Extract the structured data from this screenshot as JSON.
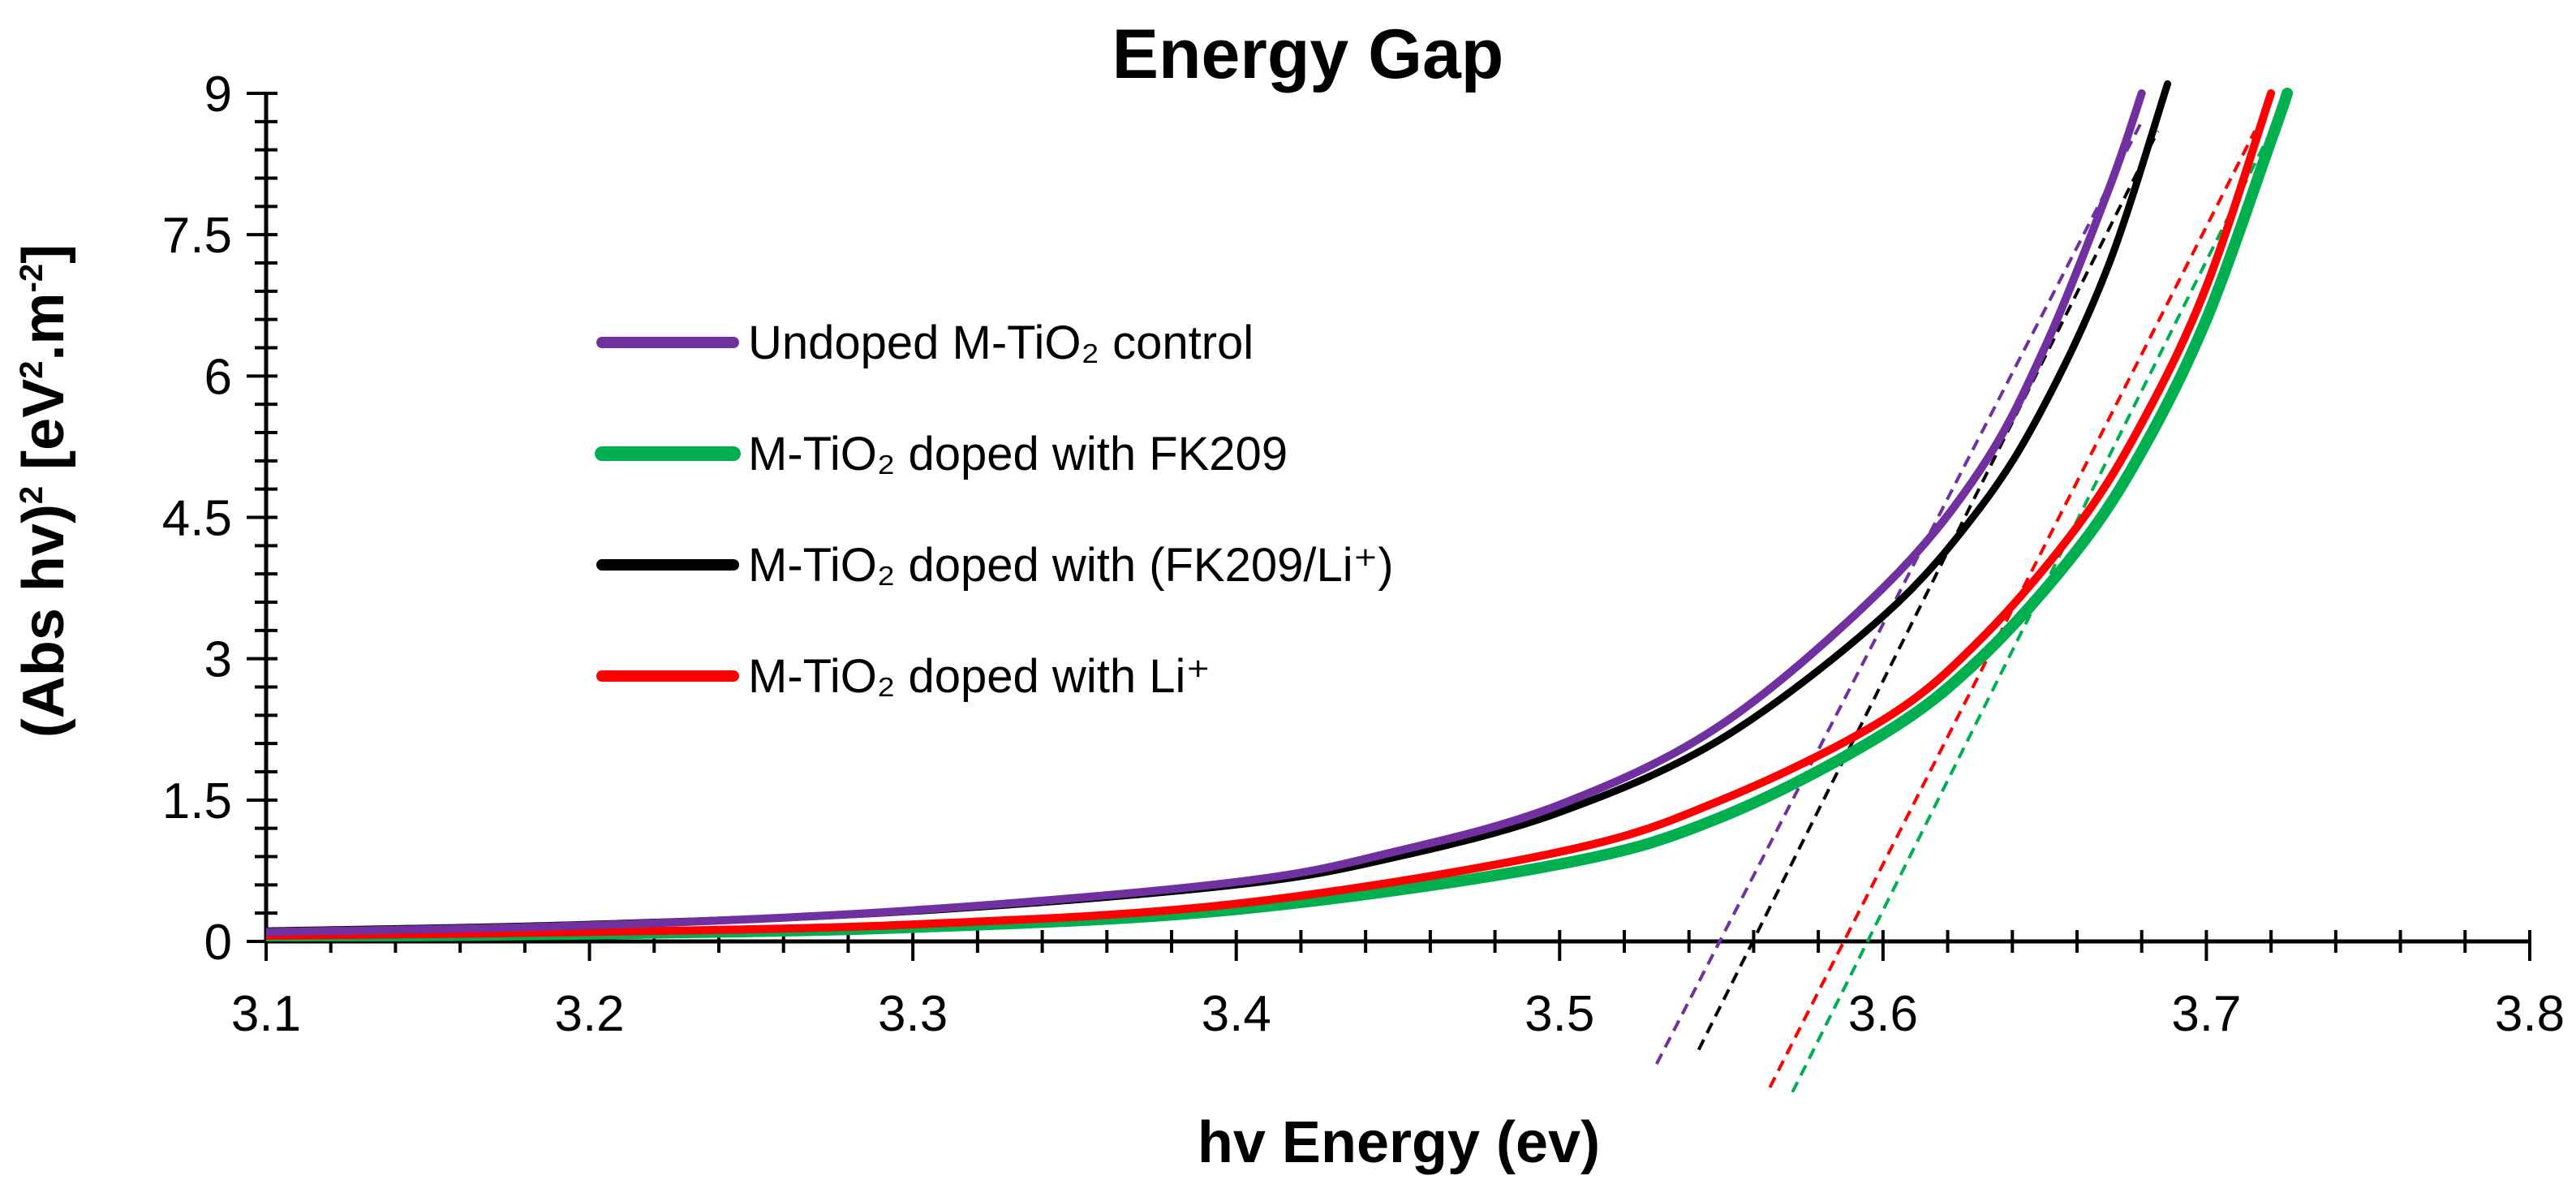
{
  "chart_data": {
    "type": "line",
    "title": "Energy Gap",
    "xlabel": "hv Energy (ev)",
    "ylabel_main": "(Abs hv)",
    "ylabel_sup1": "2",
    "ylabel_unit_open": " [eV",
    "ylabel_sup2": "2",
    "ylabel_unit_mid": ".m",
    "ylabel_sup3": "-2",
    "ylabel_unit_close": "]",
    "xlim": [
      3.1,
      3.8
    ],
    "ylim": [
      0,
      9
    ],
    "x_ticks": [
      "3.1",
      "3.2",
      "3.3",
      "3.4",
      "3.5",
      "3.6",
      "3.7",
      "3.8"
    ],
    "y_ticks": [
      "0",
      "1.5",
      "3",
      "4.5",
      "6",
      "7.5",
      "9"
    ],
    "grid": false,
    "legend_position": "upper-left inside",
    "series": [
      {
        "name": "Undoped M-TiO₂ control",
        "color": "#7030A0",
        "x": [
          3.1,
          3.2,
          3.3,
          3.4,
          3.45,
          3.5,
          3.55,
          3.6,
          3.63,
          3.65,
          3.67,
          3.68
        ],
        "y": [
          0.1,
          0.17,
          0.33,
          0.63,
          0.96,
          1.45,
          2.3,
          3.75,
          5.0,
          6.3,
          8.0,
          9.0
        ],
        "fit_x": [
          3.53,
          3.68
        ],
        "fit_y": [
          -1.3,
          8.7
        ]
      },
      {
        "name": "M-TiO₂ doped with FK209",
        "color": "#00B050",
        "x": [
          3.1,
          3.2,
          3.3,
          3.4,
          3.5,
          3.55,
          3.6,
          3.63,
          3.66,
          3.68,
          3.7,
          3.72,
          3.725
        ],
        "y": [
          0.05,
          0.08,
          0.15,
          0.34,
          0.82,
          1.32,
          2.2,
          3.0,
          4.15,
          5.2,
          6.6,
          8.5,
          9.0
        ],
        "fit_x": [
          3.572,
          3.72
        ],
        "fit_y": [
          -1.6,
          8.6
        ]
      },
      {
        "name": "M-TiO₂ doped with (FK209/Li⁺)",
        "color": "#000000",
        "x": [
          3.1,
          3.2,
          3.3,
          3.4,
          3.45,
          3.5,
          3.55,
          3.6,
          3.63,
          3.65,
          3.67,
          3.688
        ],
        "y": [
          0.11,
          0.18,
          0.32,
          0.6,
          0.9,
          1.37,
          2.15,
          3.45,
          4.6,
          5.7,
          7.2,
          9.1
        ],
        "fit_x": [
          3.543,
          3.685
        ],
        "fit_y": [
          -1.15,
          8.6
        ]
      },
      {
        "name": "M-TiO₂ doped with Li⁺",
        "color": "#FF0000",
        "x": [
          3.1,
          3.2,
          3.3,
          3.4,
          3.5,
          3.55,
          3.6,
          3.63,
          3.66,
          3.68,
          3.7,
          3.72
        ],
        "y": [
          0.06,
          0.1,
          0.18,
          0.4,
          0.95,
          1.5,
          2.35,
          3.2,
          4.4,
          5.5,
          6.95,
          9.0
        ],
        "fit_x": [
          3.565,
          3.715
        ],
        "fit_y": [
          -1.55,
          8.6
        ]
      }
    ]
  }
}
